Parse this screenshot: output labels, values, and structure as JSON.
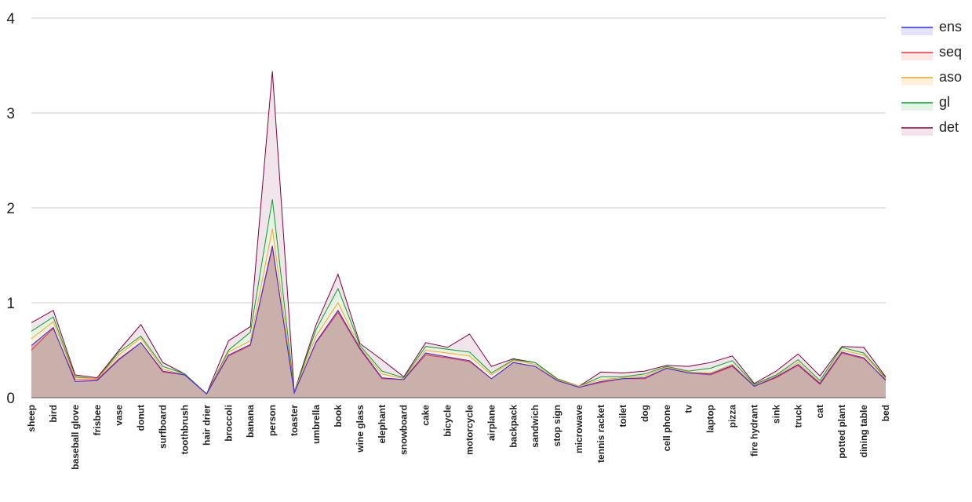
{
  "chart_data": {
    "type": "area",
    "stacked": false,
    "categories": [
      "sheep",
      "bird",
      "baseball glove",
      "frisbee",
      "vase",
      "donut",
      "surfboard",
      "toothbrush",
      "hair drier",
      "broccoli",
      "banana",
      "person",
      "toaster",
      "umbrella",
      "book",
      "wine glass",
      "elephant",
      "snowboard",
      "cake",
      "bicycle",
      "motorcycle",
      "airplane",
      "backpack",
      "sandwich",
      "stop sign",
      "microwave",
      "tennis racket",
      "toilet",
      "dog",
      "cell phone",
      "tv",
      "laptop",
      "pizza",
      "fire hydrant",
      "sink",
      "truck",
      "cat",
      "potted plant",
      "dining table",
      "bed"
    ],
    "ylim": [
      0,
      4
    ],
    "yticks": [
      "0",
      "1",
      "2",
      "3",
      "4"
    ],
    "grid": true,
    "legend_position": "top-right",
    "series": [
      {
        "name": "det",
        "color": "#800040",
        "fill": "#f1e5eb",
        "values": [
          0.79,
          0.92,
          0.24,
          0.21,
          0.5,
          0.77,
          0.37,
          0.25,
          0.04,
          0.6,
          0.75,
          3.44,
          0.06,
          0.77,
          1.3,
          0.57,
          0.4,
          0.22,
          0.58,
          0.53,
          0.67,
          0.33,
          0.41,
          0.37,
          0.2,
          0.12,
          0.27,
          0.26,
          0.28,
          0.34,
          0.33,
          0.37,
          0.44,
          0.15,
          0.28,
          0.46,
          0.23,
          0.54,
          0.53,
          0.22
        ]
      },
      {
        "name": "gl",
        "color": "#0b9d2c",
        "fill": "#e4f3e6",
        "values": [
          0.7,
          0.85,
          0.22,
          0.2,
          0.48,
          0.65,
          0.33,
          0.25,
          0.04,
          0.5,
          0.69,
          2.09,
          0.06,
          0.72,
          1.15,
          0.55,
          0.28,
          0.21,
          0.54,
          0.51,
          0.48,
          0.26,
          0.4,
          0.37,
          0.2,
          0.12,
          0.22,
          0.22,
          0.25,
          0.33,
          0.28,
          0.31,
          0.39,
          0.14,
          0.24,
          0.4,
          0.18,
          0.53,
          0.47,
          0.21
        ]
      },
      {
        "name": "aso",
        "color": "#f5a623",
        "fill": "#fdf0dc",
        "values": [
          0.62,
          0.8,
          0.21,
          0.2,
          0.45,
          0.63,
          0.3,
          0.24,
          0.04,
          0.48,
          0.6,
          1.78,
          0.06,
          0.65,
          1.0,
          0.53,
          0.25,
          0.2,
          0.5,
          0.47,
          0.44,
          0.24,
          0.39,
          0.35,
          0.19,
          0.12,
          0.19,
          0.21,
          0.23,
          0.32,
          0.27,
          0.26,
          0.35,
          0.13,
          0.23,
          0.37,
          0.16,
          0.5,
          0.45,
          0.2
        ]
      },
      {
        "name": "seq",
        "color": "#ff3030",
        "fill": "#fde6e6",
        "values": [
          0.5,
          0.73,
          0.19,
          0.19,
          0.41,
          0.58,
          0.27,
          0.24,
          0.04,
          0.44,
          0.55,
          1.58,
          0.05,
          0.58,
          0.9,
          0.51,
          0.2,
          0.19,
          0.45,
          0.42,
          0.38,
          0.2,
          0.37,
          0.33,
          0.18,
          0.11,
          0.16,
          0.2,
          0.2,
          0.31,
          0.26,
          0.24,
          0.33,
          0.12,
          0.21,
          0.34,
          0.14,
          0.47,
          0.41,
          0.19
        ]
      },
      {
        "name": "ens",
        "color": "#2b2bff",
        "fill": "#e3e3fb",
        "values": [
          0.55,
          0.74,
          0.17,
          0.18,
          0.4,
          0.58,
          0.28,
          0.24,
          0.04,
          0.45,
          0.56,
          1.6,
          0.05,
          0.59,
          0.92,
          0.52,
          0.21,
          0.19,
          0.47,
          0.43,
          0.39,
          0.2,
          0.37,
          0.33,
          0.18,
          0.11,
          0.17,
          0.2,
          0.21,
          0.31,
          0.26,
          0.25,
          0.34,
          0.12,
          0.22,
          0.35,
          0.15,
          0.48,
          0.42,
          0.18
        ]
      }
    ],
    "legend": [
      "ens",
      "seq",
      "aso",
      "gl",
      "det"
    ],
    "overlap_fill": "#c9b0ab"
  }
}
